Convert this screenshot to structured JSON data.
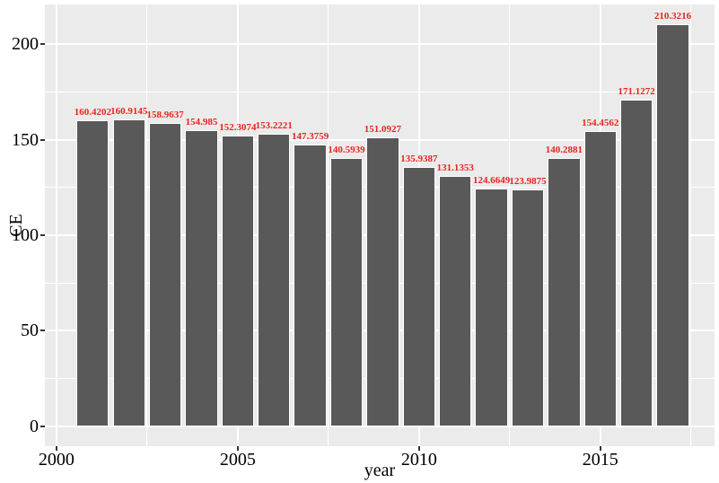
{
  "chart_data": {
    "type": "bar",
    "title": "",
    "xlabel": "year",
    "ylabel": "CE",
    "categories": [
      2001,
      2002,
      2003,
      2004,
      2005,
      2006,
      2007,
      2008,
      2009,
      2010,
      2011,
      2012,
      2013,
      2014,
      2015,
      2016,
      2017
    ],
    "values": [
      160.4202,
      160.9145,
      158.9637,
      154.985,
      152.3074,
      153.2221,
      147.3759,
      140.5939,
      151.0927,
      135.9387,
      131.1353,
      124.6649,
      123.9875,
      140.2881,
      154.4562,
      171.1272,
      210.3216
    ],
    "labels": [
      "160.4202",
      "160.9145",
      "158.9637",
      "154.985",
      "152.3074",
      "153.2221",
      "147.3759",
      "140.5939",
      "151.0927",
      "135.9387",
      "131.1353",
      "124.6649",
      "123.9875",
      "140.2881",
      "154.4562",
      "171.1272",
      "210.3216"
    ],
    "x_ticks": [
      2000,
      2005,
      2010,
      2015
    ],
    "x_minor_ticks": [
      2002.5,
      2007.5,
      2012.5,
      2017.5
    ],
    "y_ticks": [
      0,
      50,
      100,
      150,
      200
    ],
    "y_minor_ticks": [
      25,
      75,
      125,
      175
    ],
    "xlim": [
      1999.68,
      2018.15
    ],
    "ylim": [
      -10.5,
      220.9
    ],
    "bar_rel_width": 0.9,
    "grid": "on",
    "legend": "none",
    "colors": {
      "bar_fill": "#595959",
      "bar_border": "#ffffff",
      "panel_bg": "#ebebeb",
      "grid_line": "#ffffff",
      "value_label": "#e8251f",
      "axis_text": "#000000",
      "tick_mark": "#333333",
      "background": "#ffffff"
    }
  }
}
